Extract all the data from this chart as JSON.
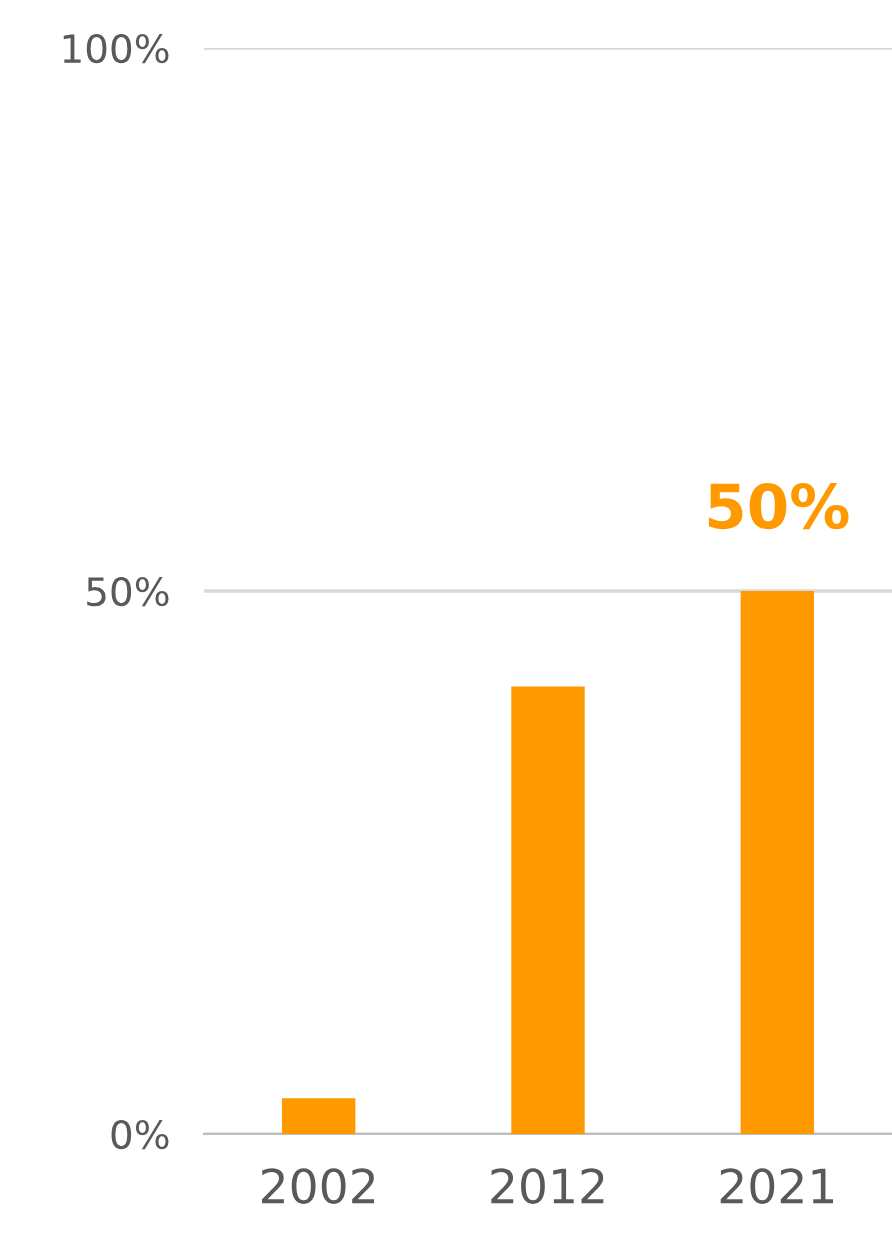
{
  "chart_data": {
    "type": "bar",
    "categories": [
      "2002",
      "2012",
      "2021"
    ],
    "values": [
      3.3,
      41.2,
      50
    ],
    "value_labels": [
      null,
      null,
      "50%"
    ],
    "color": "#ff9900",
    "ylim": [
      0,
      100
    ],
    "yticks": [
      {
        "value": 0,
        "label": "0%"
      },
      {
        "value": 50,
        "label": "50%"
      },
      {
        "value": 100,
        "label": "100%"
      }
    ],
    "grid": "y"
  }
}
